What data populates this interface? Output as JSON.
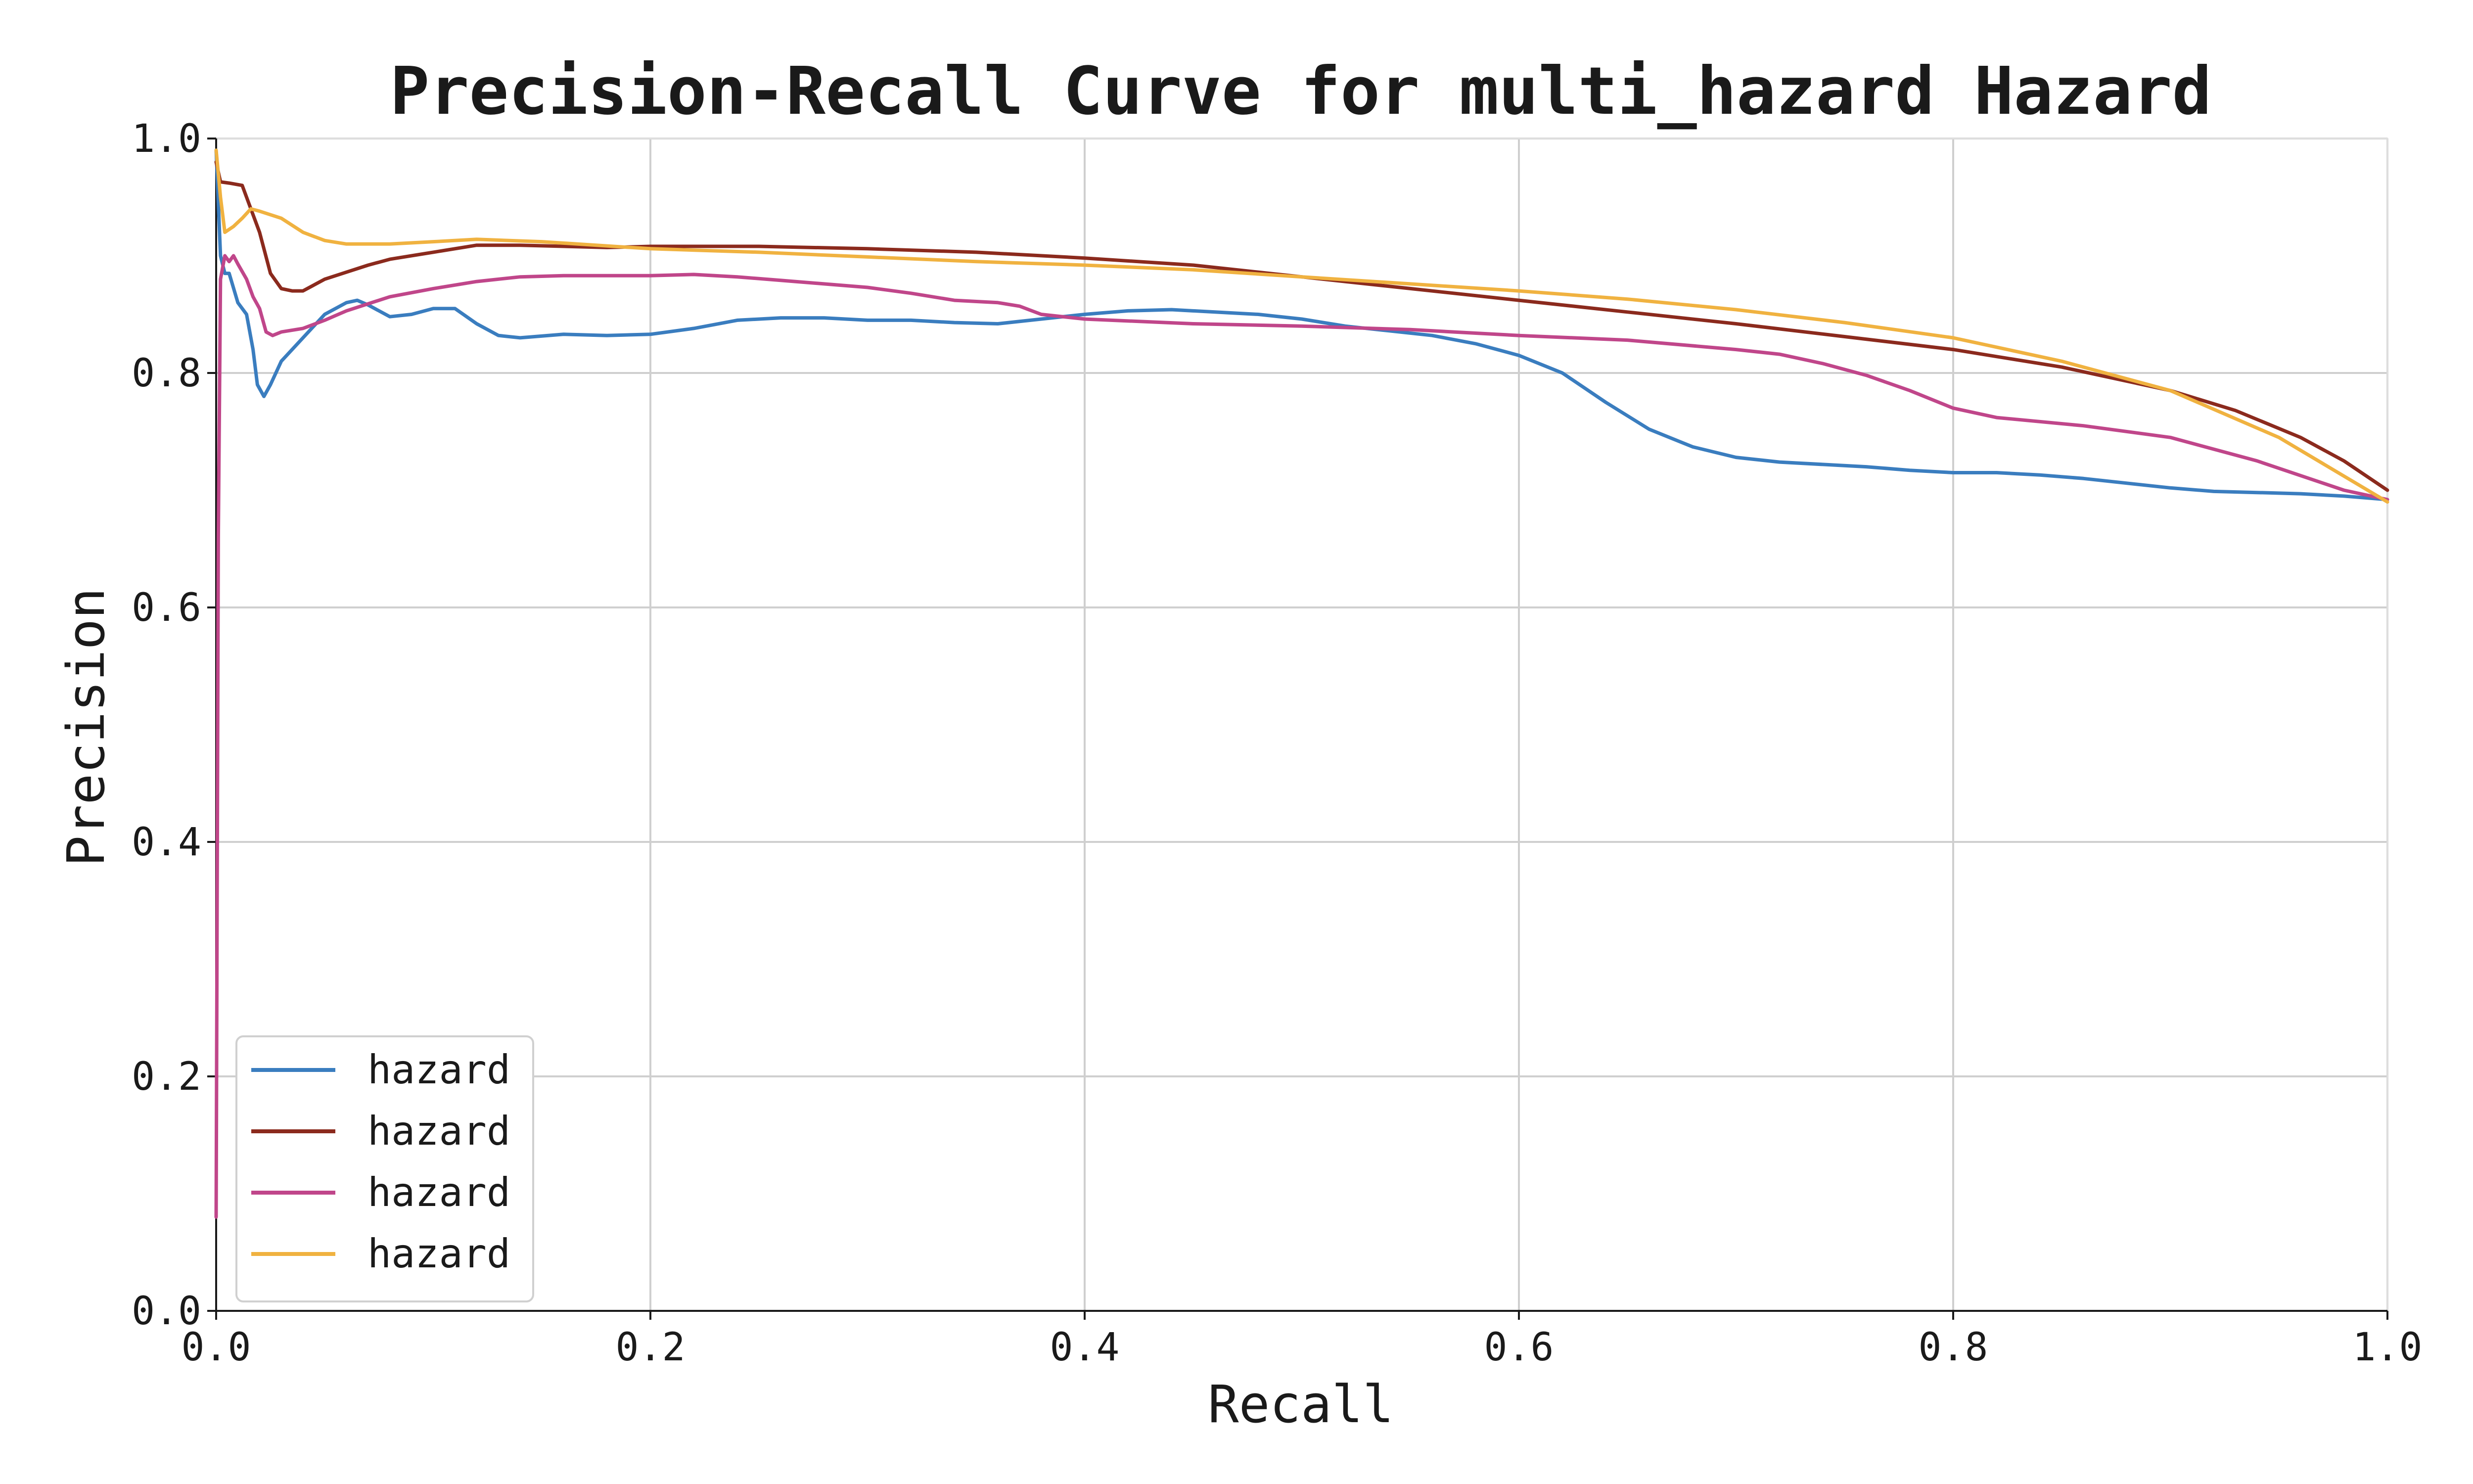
{
  "chart_data": {
    "type": "line",
    "title": "Precision-Recall Curve for multi_hazard Hazard",
    "xlabel": "Recall",
    "ylabel": "Precision",
    "xlim": [
      0.0,
      1.0
    ],
    "ylim": [
      0.0,
      1.0
    ],
    "xticks": [
      "0.0",
      "0.2",
      "0.4",
      "0.6",
      "0.8",
      "1.0"
    ],
    "yticks": [
      "0.0",
      "0.2",
      "0.4",
      "0.6",
      "0.8",
      "1.0"
    ],
    "grid": true,
    "legend_position": "lower-left",
    "series": [
      {
        "name": "hazard",
        "color": "#3a7dbf",
        "x": [
          0.0,
          0.002,
          0.004,
          0.006,
          0.01,
          0.014,
          0.017,
          0.019,
          0.022,
          0.025,
          0.03,
          0.04,
          0.05,
          0.06,
          0.065,
          0.07,
          0.08,
          0.09,
          0.1,
          0.11,
          0.12,
          0.13,
          0.14,
          0.16,
          0.18,
          0.2,
          0.22,
          0.24,
          0.26,
          0.28,
          0.3,
          0.32,
          0.34,
          0.36,
          0.38,
          0.4,
          0.42,
          0.44,
          0.46,
          0.48,
          0.5,
          0.52,
          0.54,
          0.56,
          0.58,
          0.6,
          0.62,
          0.64,
          0.66,
          0.68,
          0.7,
          0.72,
          0.74,
          0.76,
          0.78,
          0.8,
          0.82,
          0.84,
          0.86,
          0.88,
          0.9,
          0.92,
          0.94,
          0.96,
          0.98,
          1.0
        ],
        "y": [
          0.99,
          0.9,
          0.885,
          0.885,
          0.86,
          0.85,
          0.82,
          0.79,
          0.78,
          0.79,
          0.81,
          0.83,
          0.85,
          0.86,
          0.862,
          0.858,
          0.848,
          0.85,
          0.855,
          0.855,
          0.842,
          0.832,
          0.83,
          0.833,
          0.832,
          0.833,
          0.838,
          0.845,
          0.847,
          0.847,
          0.845,
          0.845,
          0.843,
          0.842,
          0.846,
          0.85,
          0.853,
          0.854,
          0.852,
          0.85,
          0.846,
          0.84,
          0.836,
          0.832,
          0.825,
          0.815,
          0.8,
          0.775,
          0.752,
          0.737,
          0.728,
          0.724,
          0.722,
          0.72,
          0.717,
          0.715,
          0.715,
          0.713,
          0.71,
          0.706,
          0.702,
          0.699,
          0.698,
          0.697,
          0.695,
          0.692
        ]
      },
      {
        "name": "hazard",
        "color": "#8b2a1d",
        "x": [
          0.0,
          0.002,
          0.006,
          0.012,
          0.016,
          0.02,
          0.025,
          0.03,
          0.035,
          0.04,
          0.05,
          0.06,
          0.07,
          0.08,
          0.1,
          0.12,
          0.14,
          0.16,
          0.18,
          0.2,
          0.25,
          0.3,
          0.35,
          0.4,
          0.45,
          0.5,
          0.55,
          0.6,
          0.65,
          0.7,
          0.75,
          0.8,
          0.85,
          0.9,
          0.93,
          0.96,
          0.98,
          1.0
        ],
        "y": [
          0.98,
          0.963,
          0.962,
          0.96,
          0.94,
          0.92,
          0.885,
          0.872,
          0.87,
          0.87,
          0.88,
          0.886,
          0.892,
          0.897,
          0.903,
          0.909,
          0.909,
          0.908,
          0.907,
          0.908,
          0.908,
          0.906,
          0.903,
          0.898,
          0.892,
          0.882,
          0.872,
          0.862,
          0.852,
          0.842,
          0.831,
          0.82,
          0.805,
          0.785,
          0.768,
          0.745,
          0.725,
          0.7
        ]
      },
      {
        "name": "hazard",
        "color": "#c0468a",
        "x": [
          0.0,
          0.001,
          0.002,
          0.004,
          0.006,
          0.008,
          0.01,
          0.014,
          0.017,
          0.02,
          0.023,
          0.026,
          0.03,
          0.04,
          0.05,
          0.06,
          0.08,
          0.1,
          0.12,
          0.14,
          0.16,
          0.18,
          0.2,
          0.22,
          0.24,
          0.26,
          0.28,
          0.3,
          0.32,
          0.34,
          0.36,
          0.37,
          0.38,
          0.4,
          0.45,
          0.5,
          0.55,
          0.6,
          0.65,
          0.7,
          0.72,
          0.74,
          0.76,
          0.78,
          0.8,
          0.82,
          0.86,
          0.9,
          0.94,
          0.98,
          1.0
        ],
        "y": [
          0.08,
          0.66,
          0.88,
          0.9,
          0.895,
          0.9,
          0.893,
          0.88,
          0.865,
          0.855,
          0.835,
          0.832,
          0.835,
          0.838,
          0.845,
          0.853,
          0.865,
          0.872,
          0.878,
          0.882,
          0.883,
          0.883,
          0.883,
          0.884,
          0.882,
          0.879,
          0.876,
          0.873,
          0.868,
          0.862,
          0.86,
          0.857,
          0.85,
          0.846,
          0.842,
          0.84,
          0.837,
          0.832,
          0.828,
          0.82,
          0.816,
          0.808,
          0.798,
          0.785,
          0.77,
          0.762,
          0.755,
          0.745,
          0.725,
          0.7,
          0.692
        ]
      },
      {
        "name": "hazard",
        "color": "#f0b240",
        "x": [
          0.0,
          0.002,
          0.004,
          0.008,
          0.012,
          0.016,
          0.02,
          0.03,
          0.04,
          0.05,
          0.06,
          0.08,
          0.1,
          0.12,
          0.15,
          0.2,
          0.25,
          0.3,
          0.35,
          0.4,
          0.45,
          0.5,
          0.55,
          0.6,
          0.65,
          0.7,
          0.75,
          0.8,
          0.85,
          0.9,
          0.95,
          1.0
        ],
        "y": [
          0.99,
          0.95,
          0.92,
          0.925,
          0.932,
          0.94,
          0.938,
          0.932,
          0.92,
          0.913,
          0.91,
          0.91,
          0.912,
          0.914,
          0.912,
          0.906,
          0.903,
          0.899,
          0.895,
          0.892,
          0.888,
          0.882,
          0.876,
          0.87,
          0.863,
          0.854,
          0.843,
          0.83,
          0.81,
          0.785,
          0.745,
          0.69
        ]
      }
    ]
  }
}
